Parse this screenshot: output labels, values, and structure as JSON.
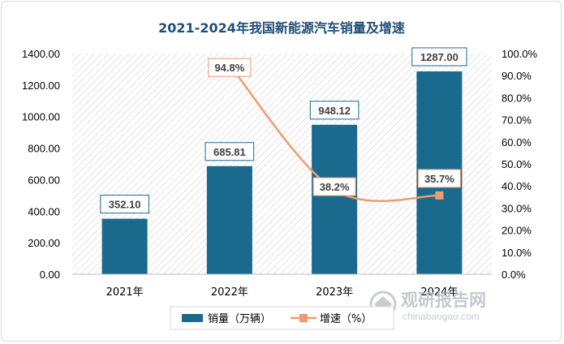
{
  "chart_data": {
    "type": "bar+line",
    "title": "2021-2024年我国新能源汽车销量及增速",
    "categories": [
      "2021年",
      "2022年",
      "2023年",
      "2024年"
    ],
    "series": [
      {
        "name": "销量（万辆）",
        "type": "bar",
        "axis": "left",
        "color": "#1a6a8e",
        "values": [
          352.1,
          685.81,
          948.12,
          1287.0
        ],
        "labels": [
          "352.10",
          "685.81",
          "948.12",
          "1287.00"
        ]
      },
      {
        "name": "增速（%）",
        "type": "line",
        "axis": "right",
        "color": "#ef9b72",
        "values": [
          null,
          94.8,
          38.2,
          35.7
        ],
        "labels": [
          "",
          "94.8%",
          "38.2%",
          "35.7%"
        ]
      }
    ],
    "y_left": {
      "min": 0,
      "max": 1400,
      "ticks": [
        "0.00",
        "200.00",
        "400.00",
        "600.00",
        "800.00",
        "1000.00",
        "1200.00",
        "1400.00"
      ]
    },
    "y_right": {
      "min": 0,
      "max": 100,
      "ticks": [
        "0.0%",
        "10.0%",
        "20.0%",
        "30.0%",
        "40.0%",
        "50.0%",
        "60.0%",
        "70.0%",
        "80.0%",
        "90.0%",
        "100.0%"
      ]
    },
    "grid": false,
    "legend": "bottom",
    "background": "hatched"
  },
  "watermark": {
    "text": "观研报告网",
    "sub": "chinabaogao.com"
  }
}
